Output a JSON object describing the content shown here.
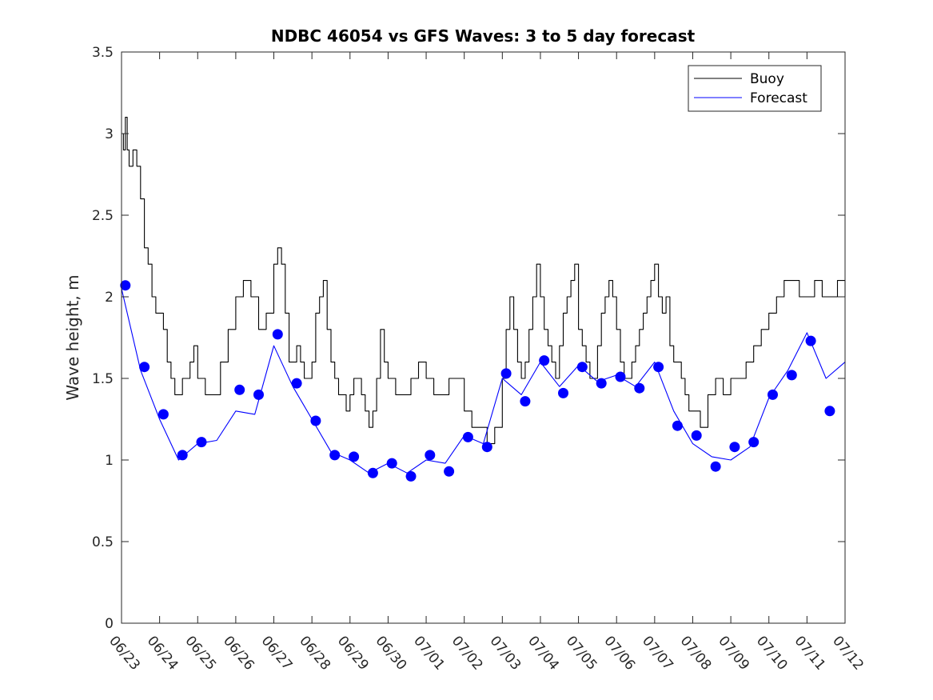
{
  "chart_data": {
    "type": "line",
    "title": "NDBC 46054 vs GFS Waves: 3 to 5 day forecast",
    "xlabel": "",
    "ylabel": "Wave height, m",
    "ylim": [
      0,
      3.5
    ],
    "xlim": [
      "06/23",
      "07/12"
    ],
    "yticks": [
      "0",
      "0.5",
      "1",
      "1.5",
      "2",
      "2.5",
      "3",
      "3.5"
    ],
    "xticks": [
      "06/23",
      "06/24",
      "06/25",
      "06/26",
      "06/27",
      "06/28",
      "06/29",
      "06/30",
      "07/01",
      "07/02",
      "07/03",
      "07/04",
      "07/05",
      "07/06",
      "07/07",
      "07/08",
      "07/09",
      "07/10",
      "07/11",
      "07/12"
    ],
    "grid": false,
    "legend_position": "top-right",
    "series": [
      {
        "name": "Buoy",
        "color": "#000000",
        "x": [
          0.0,
          0.05,
          0.1,
          0.15,
          0.2,
          0.3,
          0.4,
          0.5,
          0.6,
          0.7,
          0.8,
          0.9,
          1.0,
          1.1,
          1.2,
          1.3,
          1.4,
          1.5,
          1.6,
          1.7,
          1.8,
          1.9,
          2.0,
          2.2,
          2.4,
          2.6,
          2.8,
          3.0,
          3.2,
          3.4,
          3.6,
          3.8,
          4.0,
          4.1,
          4.2,
          4.3,
          4.4,
          4.5,
          4.6,
          4.7,
          4.8,
          4.9,
          5.0,
          5.1,
          5.2,
          5.3,
          5.4,
          5.5,
          5.6,
          5.7,
          5.8,
          5.9,
          6.0,
          6.1,
          6.2,
          6.3,
          6.4,
          6.5,
          6.6,
          6.7,
          6.8,
          6.9,
          7.0,
          7.2,
          7.4,
          7.6,
          7.8,
          8.0,
          8.2,
          8.4,
          8.6,
          8.8,
          9.0,
          9.2,
          9.4,
          9.6,
          9.8,
          10.0,
          10.1,
          10.2,
          10.3,
          10.4,
          10.5,
          10.6,
          10.7,
          10.8,
          10.9,
          11.0,
          11.1,
          11.2,
          11.3,
          11.4,
          11.5,
          11.6,
          11.7,
          11.8,
          11.9,
          12.0,
          12.1,
          12.2,
          12.3,
          12.4,
          12.5,
          12.6,
          12.7,
          12.8,
          12.9,
          13.0,
          13.1,
          13.2,
          13.3,
          13.4,
          13.5,
          13.6,
          13.7,
          13.8,
          13.9,
          14.0,
          14.1,
          14.2,
          14.3,
          14.4,
          14.5,
          14.6,
          14.7,
          14.8,
          14.9,
          15.0,
          15.1,
          15.2,
          15.4,
          15.6,
          15.8,
          16.0,
          16.2,
          16.4,
          16.6,
          16.8,
          17.0,
          17.2,
          17.4,
          17.6,
          17.8,
          18.0,
          18.2,
          18.4,
          18.6,
          18.8,
          19.0
        ],
        "values": [
          3.0,
          2.9,
          3.1,
          2.9,
          2.8,
          2.9,
          2.8,
          2.6,
          2.3,
          2.2,
          2.0,
          1.9,
          1.9,
          1.8,
          1.6,
          1.5,
          1.4,
          1.4,
          1.5,
          1.5,
          1.6,
          1.7,
          1.5,
          1.4,
          1.4,
          1.6,
          1.8,
          2.0,
          2.1,
          2.0,
          1.8,
          1.9,
          2.2,
          2.3,
          2.2,
          1.9,
          1.6,
          1.6,
          1.7,
          1.6,
          1.5,
          1.5,
          1.6,
          1.9,
          2.0,
          2.1,
          1.8,
          1.6,
          1.5,
          1.4,
          1.4,
          1.3,
          1.4,
          1.5,
          1.5,
          1.4,
          1.3,
          1.2,
          1.3,
          1.5,
          1.8,
          1.6,
          1.5,
          1.4,
          1.4,
          1.5,
          1.6,
          1.5,
          1.4,
          1.4,
          1.5,
          1.5,
          1.3,
          1.2,
          1.2,
          1.1,
          1.2,
          1.5,
          1.8,
          2.0,
          1.8,
          1.6,
          1.5,
          1.6,
          1.8,
          2.0,
          2.2,
          2.0,
          1.8,
          1.7,
          1.6,
          1.5,
          1.7,
          1.9,
          2.0,
          2.1,
          2.2,
          1.8,
          1.7,
          1.6,
          1.5,
          1.5,
          1.7,
          1.9,
          2.0,
          2.1,
          2.0,
          1.8,
          1.6,
          1.5,
          1.5,
          1.6,
          1.7,
          1.8,
          1.9,
          2.0,
          2.1,
          2.2,
          2.0,
          1.9,
          2.0,
          1.7,
          1.6,
          1.6,
          1.5,
          1.4,
          1.3,
          1.3,
          1.3,
          1.2,
          1.4,
          1.5,
          1.4,
          1.5,
          1.5,
          1.6,
          1.7,
          1.8,
          1.9,
          2.0,
          2.1,
          2.1,
          2.0,
          2.0,
          2.1,
          2.0,
          2.0,
          2.1,
          2.0
        ]
      },
      {
        "name": "Forecast",
        "color": "#0000ff",
        "x": [
          0.0,
          0.5,
          1.0,
          1.5,
          2.0,
          2.5,
          3.0,
          3.5,
          4.0,
          4.5,
          5.0,
          5.5,
          6.0,
          6.5,
          7.0,
          7.5,
          8.0,
          8.5,
          9.0,
          9.5,
          10.0,
          10.5,
          11.0,
          11.5,
          12.0,
          12.5,
          13.0,
          13.5,
          14.0,
          14.5,
          15.0,
          15.5,
          16.0,
          16.5,
          17.0,
          17.5,
          18.0,
          18.5,
          19.0
        ],
        "values": [
          2.05,
          1.55,
          1.25,
          1.0,
          1.1,
          1.12,
          1.3,
          1.28,
          1.7,
          1.45,
          1.25,
          1.05,
          1.0,
          0.92,
          0.98,
          0.92,
          1.0,
          0.98,
          1.15,
          1.1,
          1.5,
          1.4,
          1.6,
          1.45,
          1.58,
          1.48,
          1.52,
          1.45,
          1.6,
          1.3,
          1.1,
          1.02,
          1.0,
          1.08,
          1.38,
          1.55,
          1.78,
          1.5,
          1.6
        ]
      }
    ],
    "markers": {
      "series": "Forecast",
      "x": [
        0.1,
        0.6,
        1.1,
        1.6,
        2.1,
        3.1,
        3.6,
        4.1,
        4.6,
        5.1,
        5.6,
        6.1,
        6.6,
        7.1,
        7.6,
        8.1,
        8.6,
        9.1,
        9.6,
        10.1,
        10.6,
        11.1,
        11.6,
        12.1,
        12.6,
        13.1,
        13.6,
        14.1,
        14.6,
        15.1,
        15.6,
        16.1,
        16.6,
        17.1,
        17.6,
        18.1,
        18.6
      ],
      "values": [
        2.07,
        1.57,
        1.28,
        1.03,
        1.11,
        1.43,
        1.4,
        1.77,
        1.47,
        1.24,
        1.03,
        1.02,
        0.92,
        0.98,
        0.9,
        1.03,
        0.93,
        1.14,
        1.08,
        1.53,
        1.36,
        1.61,
        1.41,
        1.57,
        1.47,
        1.51,
        1.44,
        1.57,
        1.21,
        1.15,
        0.96,
        1.08,
        1.11,
        1.4,
        1.52,
        1.73,
        1.3
      ]
    }
  }
}
